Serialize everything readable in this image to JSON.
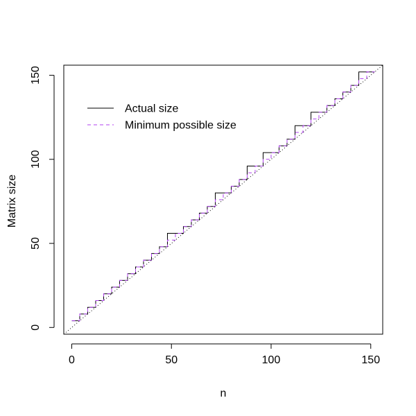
{
  "chart_data": {
    "type": "line",
    "title": "",
    "xlabel": "n",
    "ylabel": "Matrix size",
    "xlim": [
      -4,
      156
    ],
    "ylim": [
      -4,
      156
    ],
    "x_ticks": [
      "0",
      "50",
      "100",
      "150"
    ],
    "y_ticks": [
      "0",
      "50",
      "100",
      "150"
    ],
    "x_tick_values": [
      0,
      50,
      100,
      150
    ],
    "y_tick_values": [
      0,
      50,
      100,
      150
    ],
    "legend_position": "top-left",
    "series": [
      {
        "name": "Actual size",
        "line_style": "solid",
        "color": "#000000",
        "step_x": [
          0,
          4,
          8,
          12,
          16,
          20,
          24,
          28,
          32,
          36,
          40,
          44,
          48,
          56,
          60,
          64,
          68,
          72,
          80,
          84,
          88,
          96,
          104,
          108,
          112,
          120,
          128,
          132,
          136,
          140,
          144,
          152
        ],
        "step_y": [
          4,
          8,
          12,
          16,
          20,
          24,
          28,
          32,
          36,
          40,
          44,
          48,
          56,
          60,
          64,
          68,
          72,
          80,
          84,
          88,
          96,
          104,
          108,
          112,
          120,
          128,
          132,
          136,
          140,
          144,
          152,
          152
        ]
      },
      {
        "name": "Minimum possible size",
        "line_style": "dashed",
        "color": "#b040f0",
        "step_x": [
          0,
          4,
          8,
          12,
          16,
          20,
          24,
          28,
          32,
          36,
          40,
          44,
          48,
          52,
          56,
          60,
          64,
          68,
          72,
          76,
          80,
          84,
          88,
          92,
          96,
          100,
          104,
          108,
          112,
          116,
          120,
          124,
          128,
          132,
          136,
          140,
          144,
          148,
          152
        ],
        "step_y": [
          4,
          8,
          12,
          16,
          20,
          24,
          28,
          32,
          36,
          40,
          44,
          48,
          52,
          56,
          60,
          64,
          68,
          72,
          76,
          80,
          84,
          88,
          92,
          96,
          100,
          104,
          108,
          112,
          116,
          120,
          124,
          128,
          132,
          136,
          140,
          144,
          148,
          152,
          152
        ]
      },
      {
        "name": "",
        "line_style": "dotted",
        "color": "#000000",
        "x": [
          -4,
          156
        ],
        "y": [
          -4,
          156
        ]
      }
    ]
  }
}
